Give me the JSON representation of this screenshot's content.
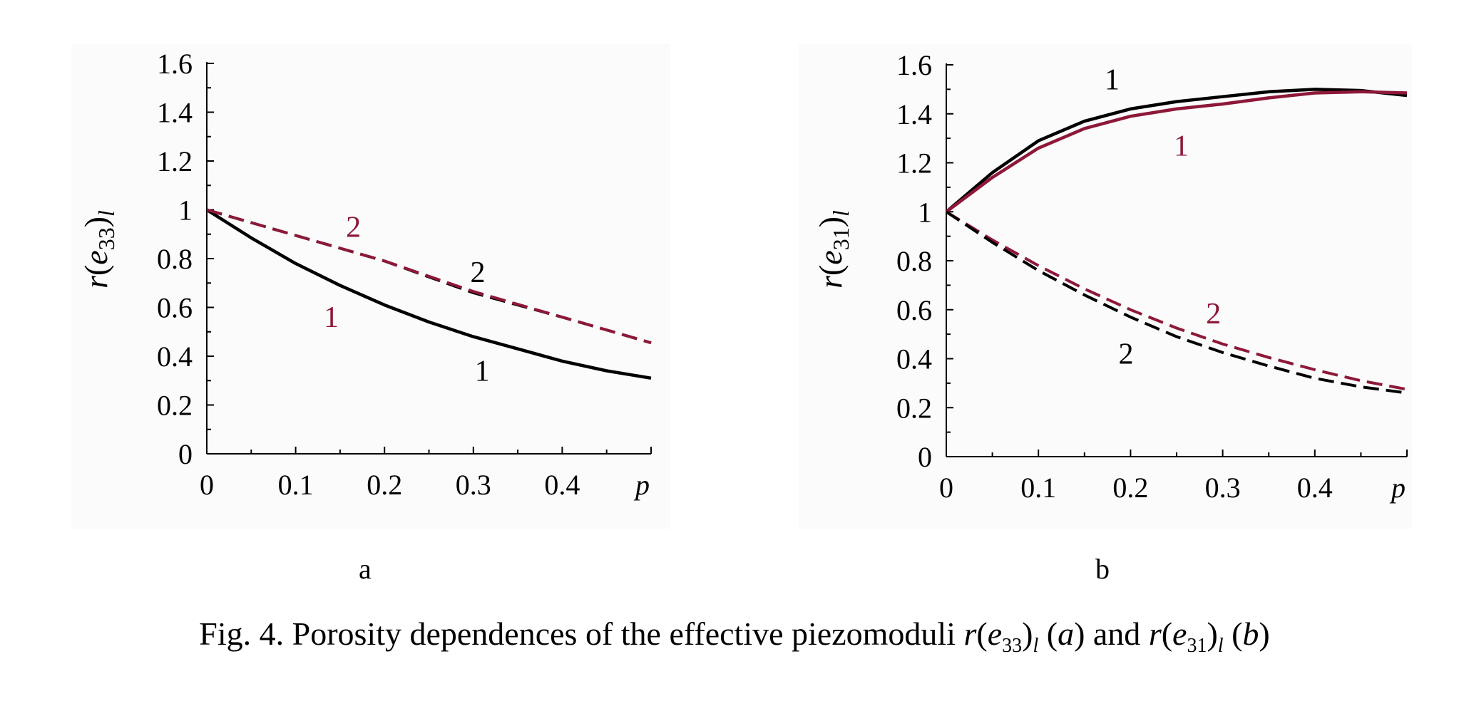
{
  "caption": {
    "prefix": "Fig. 4. Porosity dependences of the effective piezomoduli",
    "and": "and",
    "a_sym": "a",
    "b_sym": "b"
  },
  "colors": {
    "black": "#000000",
    "red": "#8e1838"
  },
  "chart_data": [
    {
      "panel": "a",
      "type": "line",
      "ylabel_base": "r(e",
      "ylabel_sub": "33",
      "ylabel_close": ")",
      "ylabel_l": "l",
      "xlabel": "p",
      "xlim": [
        0,
        0.5
      ],
      "ylim": [
        0,
        1.6
      ],
      "xticks": [
        0,
        0.1,
        0.2,
        0.3,
        0.4
      ],
      "xtick_labels": [
        "0",
        "0.1",
        "0.2",
        "0.3",
        "0.4"
      ],
      "yticks": [
        0,
        0.2,
        0.4,
        0.6,
        0.8,
        1,
        1.2,
        1.4,
        1.6
      ],
      "ytick_labels": [
        "0",
        "0.2",
        "0.4",
        "0.6",
        "0.8",
        "1",
        "1.2",
        "1.4",
        "1.6"
      ],
      "series": [
        {
          "name": "1",
          "color": "#000000",
          "dash": false,
          "x": [
            0,
            0.05,
            0.1,
            0.15,
            0.2,
            0.25,
            0.3,
            0.35,
            0.4,
            0.45,
            0.5
          ],
          "y": [
            1,
            0.885,
            0.78,
            0.69,
            0.61,
            0.54,
            0.48,
            0.43,
            0.38,
            0.34,
            0.31
          ]
        },
        {
          "name": "2",
          "color": "#000000",
          "dash": true,
          "x": [
            0,
            0.1,
            0.2,
            0.3,
            0.4,
            0.5
          ],
          "y": [
            1,
            0.895,
            0.79,
            0.66,
            0.56,
            0.455
          ]
        },
        {
          "name": "2",
          "color": "#8e1838",
          "dash": true,
          "x": [
            0,
            0.1,
            0.2,
            0.3,
            0.4,
            0.5
          ],
          "y": [
            1,
            0.895,
            0.79,
            0.665,
            0.56,
            0.455
          ]
        }
      ],
      "annotations": [
        {
          "text": "2",
          "color": "#8e1838",
          "x": 0.165,
          "y": 0.93
        },
        {
          "text": "2",
          "color": "#000000",
          "x": 0.305,
          "y": 0.745
        },
        {
          "text": "1",
          "color": "#8e1838",
          "x": 0.14,
          "y": 0.56
        },
        {
          "text": "1",
          "color": "#000000",
          "x": 0.31,
          "y": 0.34
        }
      ]
    },
    {
      "panel": "b",
      "type": "line",
      "ylabel_base": "r(e",
      "ylabel_sub": "31",
      "ylabel_close": ")",
      "ylabel_l": "l",
      "xlabel": "p",
      "xlim": [
        0,
        0.5
      ],
      "ylim": [
        0,
        1.6
      ],
      "xticks": [
        0,
        0.1,
        0.2,
        0.3,
        0.4
      ],
      "xtick_labels": [
        "0",
        "0.1",
        "0.2",
        "0.3",
        "0.4"
      ],
      "yticks": [
        0,
        0.2,
        0.4,
        0.6,
        0.8,
        1,
        1.2,
        1.4,
        1.6
      ],
      "ytick_labels": [
        "0",
        "0.2",
        "0.4",
        "0.6",
        "0.8",
        "1",
        "1.2",
        "1.4",
        "1.6"
      ],
      "series": [
        {
          "name": "1",
          "color": "#000000",
          "dash": false,
          "x": [
            0,
            0.05,
            0.1,
            0.15,
            0.2,
            0.25,
            0.3,
            0.35,
            0.4,
            0.45,
            0.5
          ],
          "y": [
            1,
            1.16,
            1.29,
            1.37,
            1.42,
            1.45,
            1.47,
            1.49,
            1.5,
            1.495,
            1.475
          ]
        },
        {
          "name": "1",
          "color": "#8e1838",
          "dash": false,
          "x": [
            0,
            0.05,
            0.1,
            0.15,
            0.2,
            0.25,
            0.3,
            0.35,
            0.4,
            0.45,
            0.5
          ],
          "y": [
            1,
            1.14,
            1.26,
            1.34,
            1.39,
            1.42,
            1.44,
            1.465,
            1.485,
            1.49,
            1.485
          ]
        },
        {
          "name": "2",
          "color": "#8e1838",
          "dash": true,
          "x": [
            0,
            0.05,
            0.1,
            0.15,
            0.2,
            0.25,
            0.3,
            0.35,
            0.4,
            0.45,
            0.5
          ],
          "y": [
            1,
            0.885,
            0.78,
            0.685,
            0.6,
            0.525,
            0.46,
            0.405,
            0.355,
            0.31,
            0.275
          ]
        },
        {
          "name": "2",
          "color": "#000000",
          "dash": true,
          "x": [
            0,
            0.05,
            0.1,
            0.15,
            0.2,
            0.25,
            0.3,
            0.35,
            0.4,
            0.45,
            0.5
          ],
          "y": [
            1,
            0.875,
            0.76,
            0.66,
            0.57,
            0.49,
            0.425,
            0.37,
            0.32,
            0.285,
            0.26
          ]
        }
      ],
      "annotations": [
        {
          "text": "1",
          "color": "#000000",
          "x": 0.18,
          "y": 1.54
        },
        {
          "text": "1",
          "color": "#8e1838",
          "x": 0.255,
          "y": 1.27
        },
        {
          "text": "2",
          "color": "#8e1838",
          "x": 0.29,
          "y": 0.585
        },
        {
          "text": "2",
          "color": "#000000",
          "x": 0.195,
          "y": 0.42
        }
      ]
    }
  ]
}
